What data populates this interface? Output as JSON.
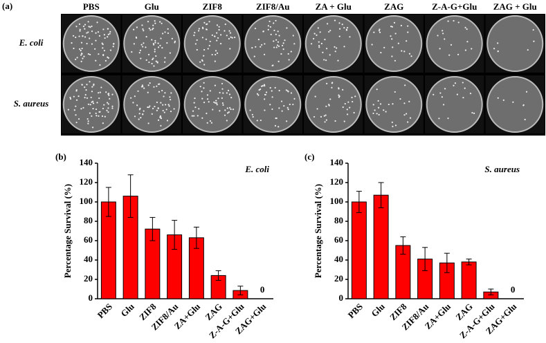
{
  "panel_a": {
    "label": "(a)",
    "columns": [
      "PBS",
      "Glu",
      "ZIF8",
      "ZIF8/Au",
      "ZA + Glu",
      "ZAG",
      "Z-A-G+Glu",
      "ZAG + Glu"
    ],
    "rows": [
      "E. coli",
      "S. aureus"
    ]
  },
  "chart_data": [
    {
      "type": "bar",
      "label": "(b)",
      "annotation": "E. coli",
      "y_label": "Percentage Survival (%)",
      "categories": [
        "PBS",
        "Glu",
        "ZIF8",
        "ZIF8/Au",
        "ZA+Glu",
        "ZAG",
        "Z-A-G+Glu",
        "ZAG+Glu"
      ],
      "values": [
        100,
        106,
        72,
        66,
        63,
        24,
        8.5,
        0
      ],
      "errors": [
        15,
        22,
        12,
        15,
        11,
        5,
        4.5,
        0
      ],
      "color": "#ff0000",
      "ylim": [
        0,
        140
      ],
      "yticks": [
        0,
        20,
        40,
        60,
        80,
        100,
        120,
        140
      ]
    },
    {
      "type": "bar",
      "label": "(c)",
      "annotation": "S. aureus",
      "y_label": "Percentage Survival (%)",
      "categories": [
        "PBS",
        "Glu",
        "ZIF8",
        "ZIF8/Au",
        "ZA+Glu",
        "ZAG",
        "Z-A-G+Glu",
        "ZAG+Glu"
      ],
      "values": [
        100,
        107,
        55,
        41,
        37,
        38,
        7,
        0
      ],
      "errors": [
        11,
        13,
        9,
        12,
        10,
        3,
        3,
        0
      ],
      "color": "#ff0000",
      "ylim": [
        0,
        140
      ],
      "yticks": [
        0,
        20,
        40,
        60,
        80,
        100,
        120,
        140
      ]
    }
  ]
}
